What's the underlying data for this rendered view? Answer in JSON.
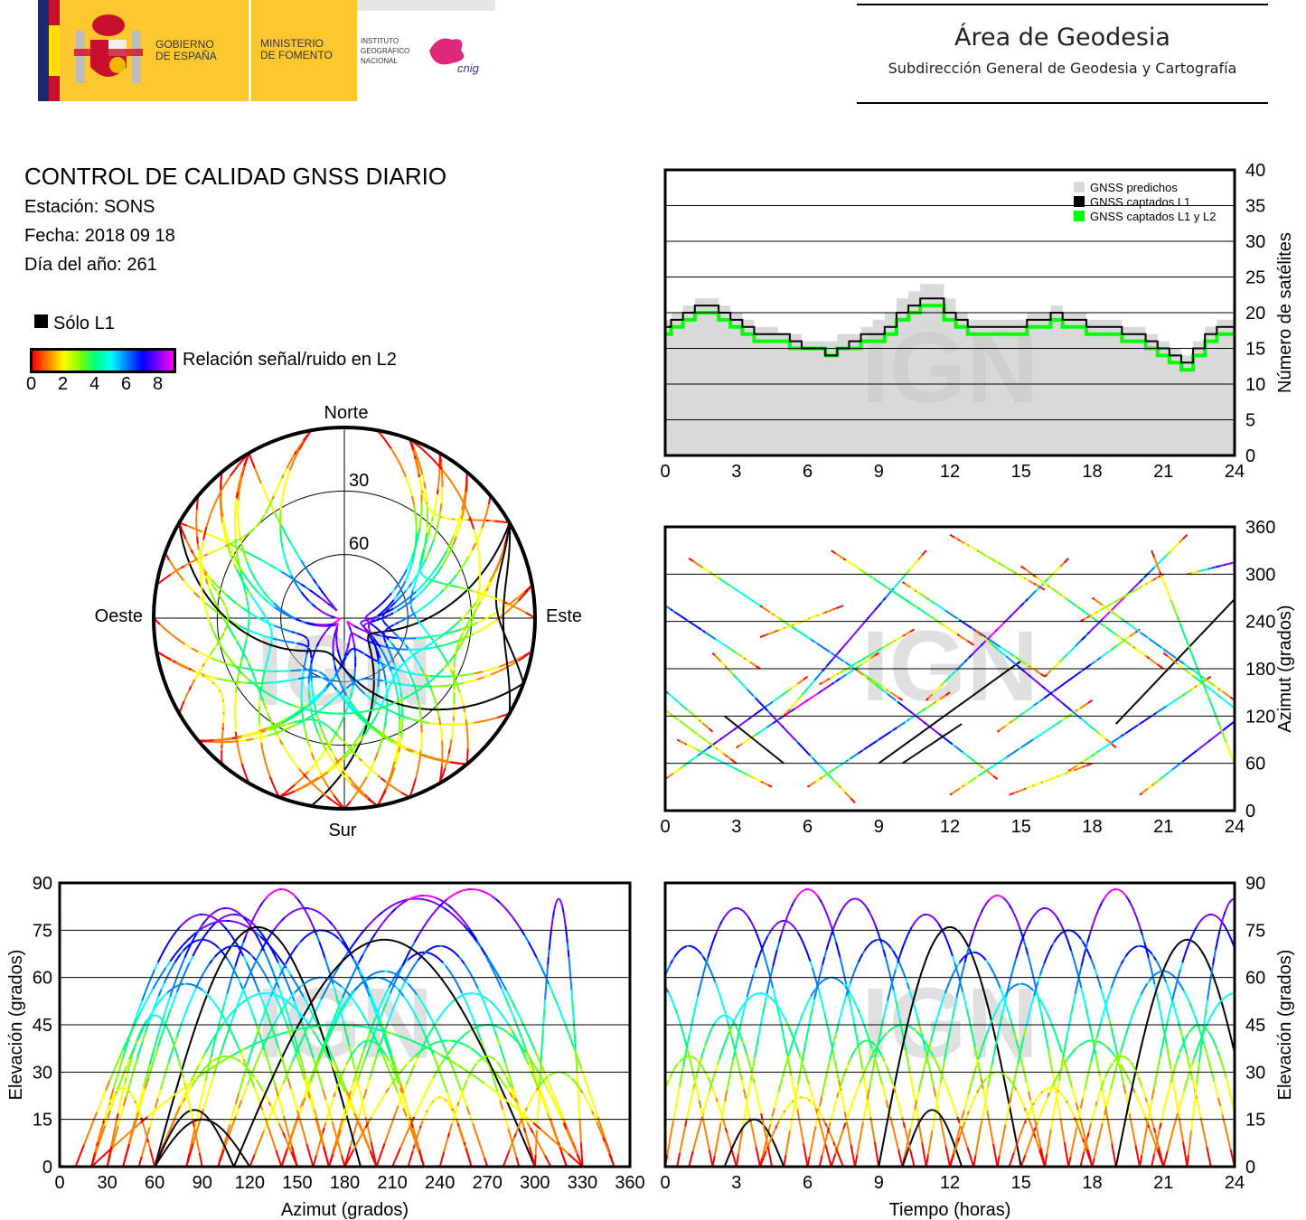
{
  "header": {
    "gov": "GOBIERNO\nDE ESPAÑA",
    "ministry": "MINISTERIO\nDE FOMENTO",
    "institute": "INSTITUTO\nGEOGRÁFICO\nNACIONAL",
    "cnig": "cnig",
    "area_title": "Área de Geodesia",
    "area_subtitle": "Subdirección General de Geodesia y Cartografía"
  },
  "report": {
    "title": "CONTROL DE CALIDAD GNSS DIARIO",
    "station": "Estación: SONS",
    "date": "Fecha: 2018 09 18",
    "doy": "Día del año: 261"
  },
  "legend": {
    "l1_only": "Sólo L1",
    "snr_label": "Relación señal/ruido en L2",
    "snr_ticks": [
      "0",
      "2",
      "4",
      "6",
      "8"
    ]
  },
  "watermark": "IGN",
  "colors": {
    "l1": "#000000",
    "l1l2": "#00ff00",
    "predicted": "#d9d9d9"
  },
  "chart_data": [
    {
      "id": "count",
      "type": "area",
      "ylabel": "Número de satélites",
      "xlim": [
        0,
        24
      ],
      "ylim": [
        0,
        40
      ],
      "xticks": [
        "0",
        "3",
        "6",
        "9",
        "12",
        "15",
        "18",
        "21",
        "24"
      ],
      "yticks": [
        "0",
        "5",
        "10",
        "15",
        "20",
        "25",
        "30",
        "35",
        "40"
      ],
      "legend": [
        "GNSS predichos",
        "GNSS captados L1",
        "GNSS captados L1 y L2"
      ],
      "x_step_hours": 0.5,
      "series": [
        {
          "name": "GNSS predichos",
          "values": [
            19,
            20,
            21,
            22,
            22,
            21,
            20,
            19,
            18,
            18,
            17,
            17,
            16,
            16,
            16,
            17,
            17,
            18,
            19,
            20,
            22,
            23,
            24,
            24,
            22,
            20,
            19,
            19,
            19,
            19,
            19,
            20,
            20,
            21,
            20,
            20,
            19,
            19,
            19,
            18,
            18,
            17,
            16,
            15,
            14,
            16,
            18,
            19,
            19
          ]
        },
        {
          "name": "GNSS captados L1",
          "values": [
            18,
            19,
            20,
            21,
            21,
            20,
            19,
            18,
            17,
            17,
            17,
            16,
            15,
            15,
            14,
            15,
            16,
            17,
            17,
            18,
            20,
            21,
            22,
            22,
            20,
            19,
            18,
            18,
            18,
            18,
            18,
            19,
            19,
            20,
            19,
            19,
            18,
            18,
            18,
            17,
            17,
            16,
            15,
            14,
            13,
            15,
            17,
            18,
            18
          ]
        },
        {
          "name": "GNSS captados L1 y L2",
          "values": [
            17,
            18,
            19,
            20,
            20,
            19,
            18,
            17,
            16,
            16,
            16,
            15,
            15,
            15,
            14,
            15,
            15,
            16,
            16,
            17,
            19,
            20,
            21,
            21,
            19,
            18,
            17,
            17,
            17,
            17,
            17,
            18,
            18,
            19,
            18,
            18,
            17,
            17,
            17,
            16,
            16,
            15,
            14,
            13,
            12,
            14,
            16,
            17,
            17
          ]
        }
      ]
    },
    {
      "id": "skyplot",
      "type": "scatter",
      "labels": {
        "n": "Norte",
        "s": "Sur",
        "e": "Este",
        "w": "Oeste"
      },
      "rings": [
        "30",
        "60"
      ]
    },
    {
      "id": "azimuth",
      "type": "scatter",
      "ylabel": "Azimut (grados)",
      "xlim": [
        0,
        24
      ],
      "ylim": [
        0,
        360
      ],
      "xticks": [
        "0",
        "3",
        "6",
        "9",
        "12",
        "15",
        "18",
        "21",
        "24"
      ],
      "yticks": [
        "0",
        "60",
        "120",
        "180",
        "240",
        "300",
        "360"
      ]
    },
    {
      "id": "elev_az",
      "type": "scatter",
      "xlabel": "Azimut (grados)",
      "ylabel": "Elevación (grados)",
      "xlim": [
        0,
        360
      ],
      "ylim": [
        0,
        90
      ],
      "xticks": [
        "0",
        "30",
        "60",
        "90",
        "120",
        "150",
        "180",
        "210",
        "240",
        "270",
        "300",
        "330",
        "360"
      ],
      "yticks": [
        "0",
        "15",
        "30",
        "45",
        "60",
        "75",
        "90"
      ]
    },
    {
      "id": "elev_time",
      "type": "scatter",
      "xlabel": "Tiempo (horas)",
      "ylabel": "Elevación (grados)",
      "xlim": [
        0,
        24
      ],
      "ylim": [
        0,
        90
      ],
      "xticks": [
        "0",
        "3",
        "6",
        "9",
        "12",
        "15",
        "18",
        "21",
        "24"
      ],
      "yticks": [
        "0",
        "15",
        "30",
        "45",
        "60",
        "75",
        "90"
      ]
    },
    {
      "id": "passes",
      "type": "scatter",
      "fields": [
        "start_h",
        "end_h",
        "az_start",
        "az_end",
        "max_elev",
        "l1_only"
      ],
      "values": [
        [
          -2,
          4,
          300,
          180,
          70,
          0
        ],
        [
          0,
          6,
          40,
          170,
          82,
          0
        ],
        [
          1,
          7,
          320,
          200,
          55,
          0
        ],
        [
          -1,
          3,
          150,
          60,
          35,
          0
        ],
        [
          2,
          8,
          200,
          10,
          78,
          0
        ],
        [
          3,
          9,
          80,
          200,
          88,
          0
        ],
        [
          4,
          10,
          260,
          140,
          60,
          0
        ],
        [
          5,
          11,
          120,
          330,
          85,
          0
        ],
        [
          6,
          12,
          30,
          150,
          72,
          0
        ],
        [
          7,
          13,
          330,
          210,
          45,
          0
        ],
        [
          8,
          14,
          180,
          40,
          80,
          0
        ],
        [
          9,
          15,
          60,
          190,
          76,
          1
        ],
        [
          10,
          16,
          290,
          170,
          68,
          0
        ],
        [
          11,
          17,
          140,
          320,
          86,
          0
        ],
        [
          12,
          18,
          20,
          140,
          58,
          0
        ],
        [
          13,
          19,
          230,
          80,
          82,
          0
        ],
        [
          14,
          20,
          100,
          230,
          75,
          0
        ],
        [
          15,
          21,
          310,
          180,
          40,
          0
        ],
        [
          16,
          22,
          170,
          350,
          88,
          0
        ],
        [
          17,
          23,
          50,
          170,
          70,
          0
        ],
        [
          18,
          24,
          270,
          140,
          62,
          0
        ],
        [
          19,
          25,
          110,
          300,
          72,
          1
        ],
        [
          20,
          26,
          20,
          160,
          80,
          0
        ],
        [
          21,
          27,
          200,
          60,
          55,
          0
        ],
        [
          -3,
          2,
          230,
          100,
          60,
          0
        ],
        [
          2.5,
          5,
          120,
          60,
          15,
          1
        ],
        [
          10,
          12.5,
          60,
          110,
          18,
          1
        ],
        [
          22,
          26,
          300,
          330,
          85,
          0
        ],
        [
          12,
          16,
          350,
          280,
          30,
          0
        ],
        [
          4,
          7.5,
          220,
          260,
          22,
          0
        ],
        [
          14.5,
          18,
          20,
          60,
          25,
          0
        ],
        [
          6.5,
          10.5,
          160,
          230,
          40,
          0
        ],
        [
          17.5,
          21,
          240,
          300,
          35,
          0
        ],
        [
          0.5,
          4.5,
          90,
          30,
          48,
          0
        ],
        [
          20.5,
          24.5,
          330,
          20,
          45,
          0
        ]
      ]
    }
  ]
}
